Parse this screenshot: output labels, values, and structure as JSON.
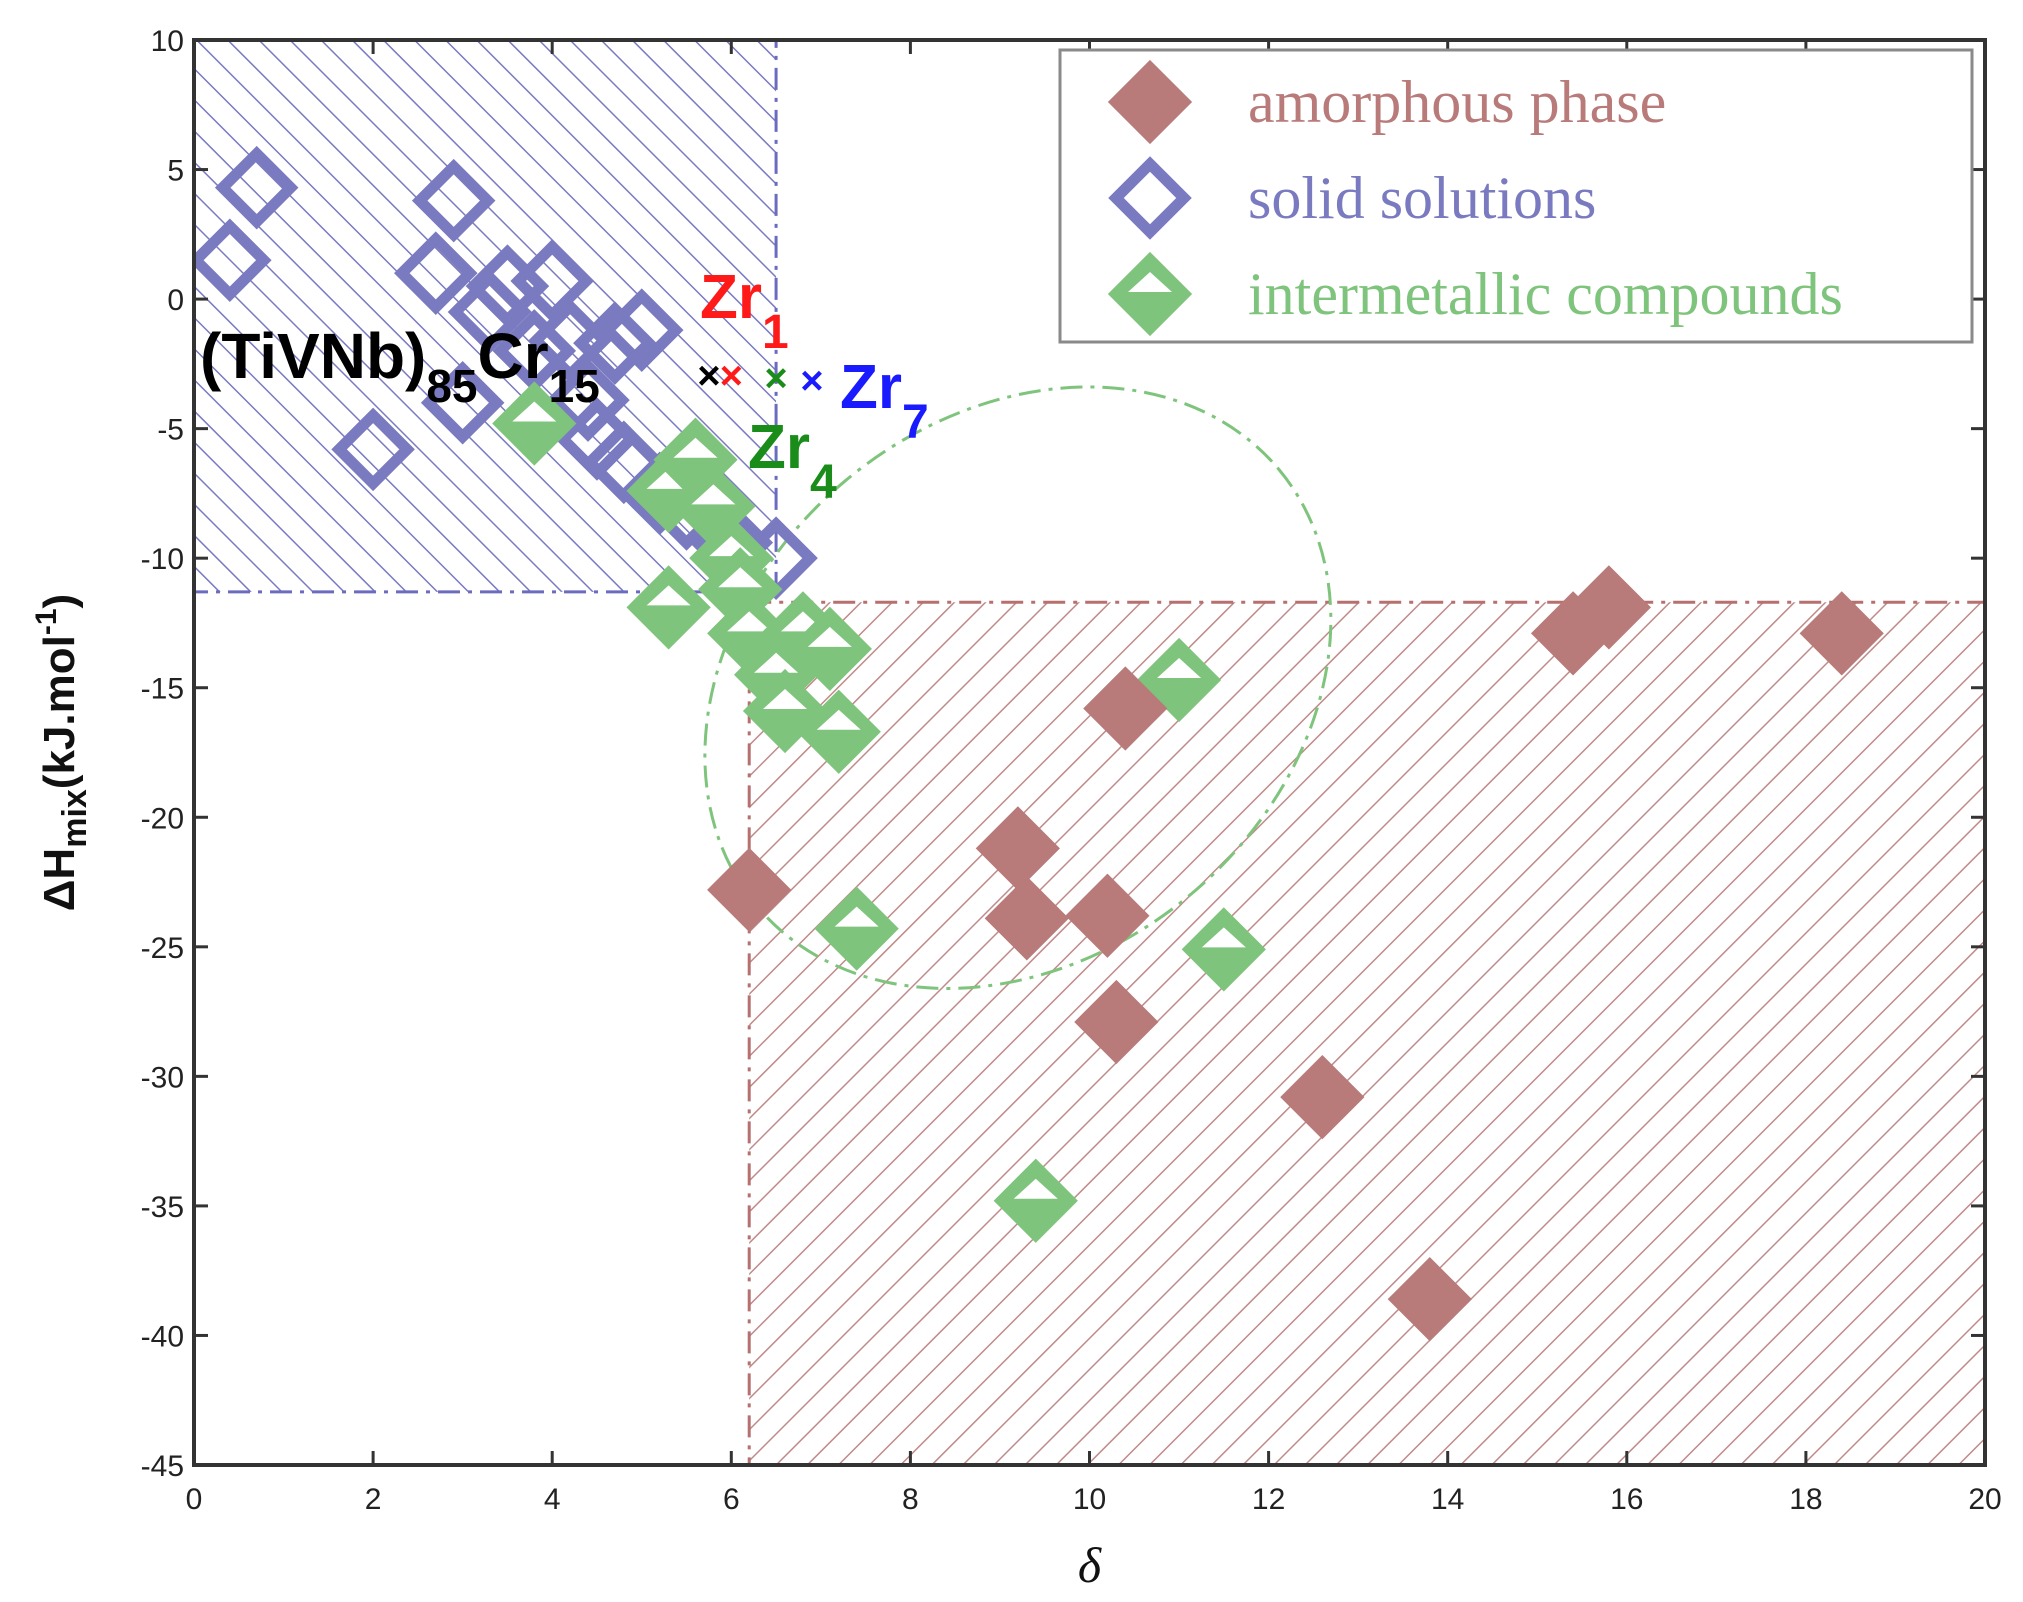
{
  "chart_data": {
    "type": "scatter",
    "xlabel": "δ",
    "ylabel": {
      "base": "ΔH",
      "sub": "mix",
      "unit": "(kJ.mol",
      "sup": "-1",
      "close": ")"
    },
    "xlim": [
      0,
      20
    ],
    "ylim": [
      -45,
      10
    ],
    "xticks": [
      0,
      2,
      4,
      6,
      8,
      10,
      12,
      14,
      16,
      18,
      20
    ],
    "yticks": [
      10,
      5,
      0,
      -5,
      -10,
      -15,
      -20,
      -25,
      -30,
      -35,
      -40,
      -45
    ],
    "grid": false,
    "legend": {
      "position": "top-right",
      "entries": [
        {
          "label": "amorphous phase",
          "marker": "filled-diamond",
          "color": "#b87b7a"
        },
        {
          "label": "solid solutions",
          "marker": "open-diamond",
          "color": "#7a7ac0"
        },
        {
          "label": "intermetallic compounds",
          "marker": "half-filled-diamond",
          "color": "#7fc47c"
        }
      ]
    },
    "regions": [
      {
        "name": "solid solutions region",
        "x": [
          0,
          6.5
        ],
        "y": [
          -11.3,
          10
        ],
        "color": "#6b6bbf"
      },
      {
        "name": "amorphous region",
        "x": [
          6.2,
          20
        ],
        "y": [
          -45,
          -11.7
        ],
        "color": "#b5706f"
      },
      {
        "name": "intermetallic ellipse",
        "cx": 9.2,
        "cy": -15,
        "rx": 3.8,
        "ry": 20,
        "angle_deg": -40,
        "color": "#7fc47c"
      }
    ],
    "series": [
      {
        "name": "amorphous phase",
        "points": [
          [
            6.2,
            -22.8
          ],
          [
            9.2,
            -21.2
          ],
          [
            9.3,
            -23.9
          ],
          [
            10.2,
            -23.8
          ],
          [
            10.3,
            -27.9
          ],
          [
            10.4,
            -15.8
          ],
          [
            12.6,
            -30.8
          ],
          [
            13.8,
            -38.6
          ],
          [
            15.4,
            -12.9
          ],
          [
            15.8,
            -11.9
          ],
          [
            18.4,
            -12.9
          ]
        ]
      },
      {
        "name": "solid solutions",
        "points": [
          [
            0.4,
            1.5
          ],
          [
            0.7,
            4.3
          ],
          [
            2.0,
            -5.8
          ],
          [
            2.7,
            1.0
          ],
          [
            2.9,
            3.8
          ],
          [
            3.0,
            -4.0
          ],
          [
            3.3,
            -0.5
          ],
          [
            3.5,
            0.5
          ],
          [
            3.8,
            -2.0
          ],
          [
            4.0,
            0.7
          ],
          [
            4.2,
            -1.6
          ],
          [
            4.4,
            -3.9
          ],
          [
            4.5,
            -5.4
          ],
          [
            4.7,
            -1.7
          ],
          [
            4.8,
            -6.3
          ],
          [
            5.0,
            -1.2
          ],
          [
            5.2,
            -7.5
          ],
          [
            5.5,
            -8.1
          ],
          [
            6.0,
            -9.4
          ],
          [
            6.5,
            -10.0
          ]
        ]
      },
      {
        "name": "intermetallic compounds",
        "points": [
          [
            3.8,
            -4.8
          ],
          [
            5.3,
            -11.9
          ],
          [
            5.3,
            -7.4
          ],
          [
            5.6,
            -6.2
          ],
          [
            5.8,
            -8.0
          ],
          [
            6.0,
            -10.0
          ],
          [
            6.1,
            -11.2
          ],
          [
            6.2,
            -12.9
          ],
          [
            6.5,
            -14.5
          ],
          [
            6.6,
            -15.9
          ],
          [
            6.8,
            -12.9
          ],
          [
            7.1,
            -13.5
          ],
          [
            7.2,
            -16.7
          ],
          [
            7.4,
            -24.3
          ],
          [
            9.4,
            -34.8
          ],
          [
            11.0,
            -14.7
          ],
          [
            11.5,
            -25.1
          ]
        ]
      }
    ],
    "annotations": [
      {
        "label": "(TiVNb)",
        "sub1": "85",
        "mid": "Cr",
        "sub2": "15",
        "x": 5.75,
        "y": -3.0,
        "marker": "×",
        "color": "#000000"
      },
      {
        "label": "Zr",
        "sub": "1",
        "x": 6.0,
        "y": -3.0,
        "marker": "×",
        "color": "#ff1a1a"
      },
      {
        "label": "Zr",
        "sub": "4",
        "x": 6.5,
        "y": -3.1,
        "marker": "×",
        "color": "#1a8c1a"
      },
      {
        "label": "Zr",
        "sub": "7",
        "x": 6.9,
        "y": -3.2,
        "marker": "×",
        "color": "#1a1aff"
      }
    ]
  }
}
